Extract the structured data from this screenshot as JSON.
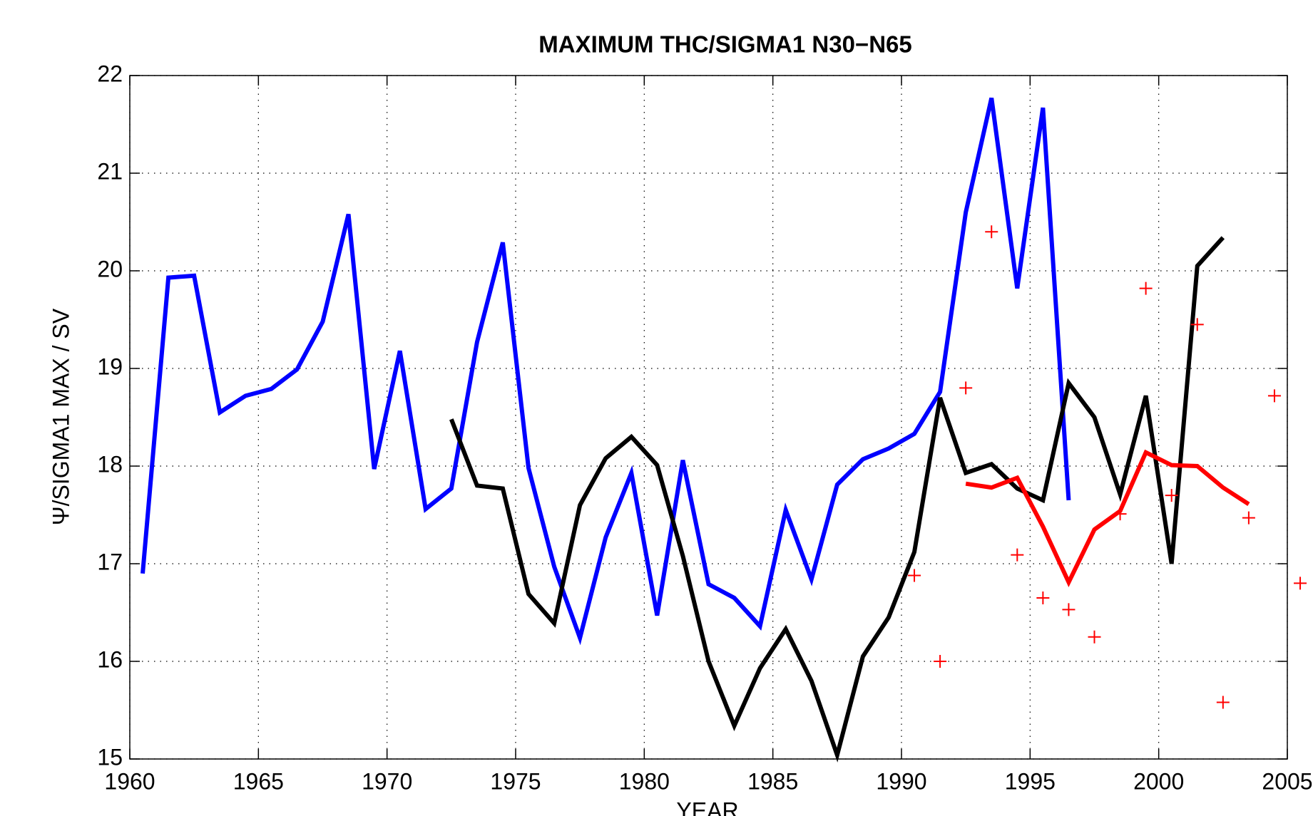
{
  "chart_data": {
    "type": "line",
    "title": "MAXIMUM THC/SIGMA1 N30−N65",
    "xlabel": "YEAR",
    "ylabel": "Ψ/SIGMA1 MAX / SV",
    "xlim": [
      1960,
      2005
    ],
    "xticks": [
      1960,
      1965,
      1970,
      1975,
      1980,
      1985,
      1990,
      1995,
      2000,
      2005
    ],
    "ylim": [
      15,
      22
    ],
    "yticks": [
      15,
      16,
      17,
      18,
      19,
      20,
      21,
      22
    ],
    "grid": true,
    "series": [
      {
        "color": "#0000ff",
        "style": "line",
        "x": [
          1960.5,
          1961.5,
          1962.5,
          1963.5,
          1964.5,
          1965.5,
          1966.5,
          1967.5,
          1968.5,
          1969.5,
          1970.5,
          1971.5,
          1972.5,
          1973.5,
          1974.5,
          1975.5,
          1976.5,
          1977.5,
          1978.5,
          1979.5,
          1980.5,
          1981.5,
          1982.5,
          1983.5,
          1984.5,
          1985.5,
          1986.5,
          1987.5,
          1988.5,
          1989.5,
          1990.5,
          1991.5,
          1992.5,
          1993.5,
          1994.5,
          1995.5,
          1996.5
        ],
        "values": [
          16.9,
          19.93,
          19.95,
          18.55,
          18.72,
          18.79,
          18.99,
          19.48,
          20.58,
          17.97,
          19.18,
          17.56,
          17.77,
          19.27,
          20.29,
          17.98,
          16.97,
          16.24,
          17.27,
          17.93,
          16.47,
          18.06,
          16.79,
          16.65,
          16.36,
          17.55,
          16.84,
          17.81,
          18.07,
          18.18,
          18.33,
          18.76,
          20.6,
          21.77,
          19.82,
          21.67,
          17.65
        ]
      },
      {
        "color": "#000000",
        "style": "line",
        "x": [
          1972.5,
          1973.5,
          1974.5,
          1975.5,
          1976.5,
          1977.5,
          1978.5,
          1979.5,
          1980.5,
          1981.5,
          1982.5,
          1983.5,
          1984.5,
          1985.5,
          1986.5,
          1987.5,
          1988.5,
          1989.5,
          1990.5,
          1991.5,
          1992.5,
          1993.5,
          1994.5,
          1995.5,
          1996.5,
          1997.5,
          1998.5,
          1999.5,
          2000.5,
          2001.5,
          2002.5
        ],
        "values": [
          18.48,
          17.8,
          17.77,
          16.69,
          16.39,
          17.6,
          18.08,
          18.3,
          18.01,
          17.08,
          16.0,
          15.34,
          15.93,
          16.33,
          15.8,
          15.04,
          16.05,
          16.45,
          17.12,
          18.7,
          17.93,
          18.02,
          17.77,
          17.65,
          18.85,
          18.5,
          17.71,
          18.72,
          17.0,
          20.05,
          20.34
        ]
      },
      {
        "color": "#ff0000",
        "style": "line",
        "x": [
          1992.5,
          1993.5,
          1994.5,
          1995.5,
          1996.5,
          1997.5,
          1998.5,
          1999.5,
          2000.5,
          2001.5,
          2002.5,
          2003.5
        ],
        "values": [
          17.82,
          17.78,
          17.88,
          17.38,
          16.81,
          17.35,
          17.54,
          18.14,
          18.01,
          18.0,
          17.78,
          17.61
        ]
      },
      {
        "color": "#ff0000",
        "style": "plus",
        "x": [
          1990.5,
          1991.5,
          1992.5,
          1993.5,
          1994.5,
          1995.5,
          1996.5,
          1997.5,
          1998.5,
          1999.5,
          2000.5,
          2001.5,
          2002.5,
          2003.5,
          2004.5,
          2005.5
        ],
        "values": [
          16.88,
          16.0,
          18.8,
          20.4,
          17.09,
          16.65,
          16.53,
          16.25,
          17.51,
          19.82,
          17.7,
          19.45,
          15.58,
          17.47,
          18.72,
          16.8
        ]
      }
    ]
  }
}
